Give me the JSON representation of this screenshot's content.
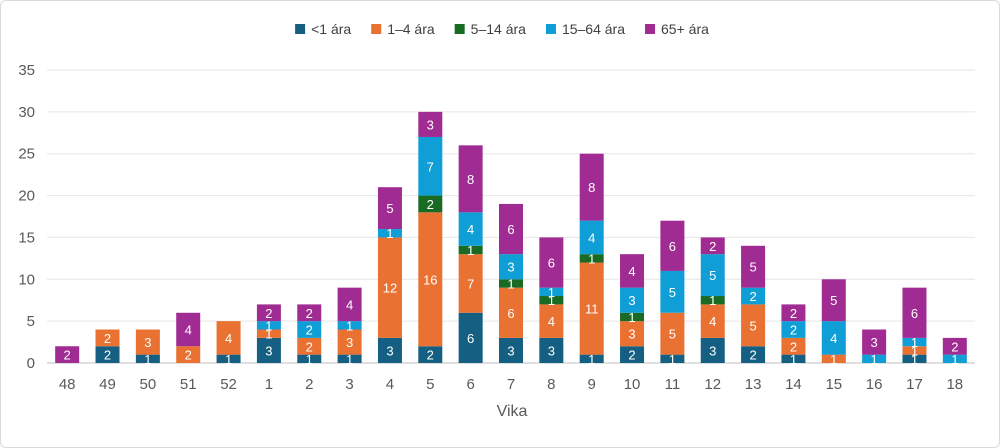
{
  "chart_data": {
    "type": "bar",
    "stacked": true,
    "xlabel": "Vika",
    "ylabel": "",
    "ylim": [
      0,
      35
    ],
    "yticks": [
      0,
      5,
      10,
      15,
      20,
      25,
      30,
      35
    ],
    "grid": true,
    "legend_position": "top",
    "categories": [
      "48",
      "49",
      "50",
      "51",
      "52",
      "1",
      "2",
      "3",
      "4",
      "5",
      "6",
      "7",
      "8",
      "9",
      "10",
      "11",
      "12",
      "13",
      "14",
      "15",
      "16",
      "17",
      "18"
    ],
    "series": [
      {
        "name": "<1 ára",
        "color": "#155f82",
        "values": [
          0,
          2,
          1,
          0,
          1,
          3,
          1,
          1,
          3,
          2,
          6,
          3,
          3,
          1,
          2,
          1,
          3,
          2,
          1,
          0,
          0,
          1,
          0
        ]
      },
      {
        "name": "1–4 ára",
        "color": "#e97132",
        "values": [
          0,
          2,
          3,
          2,
          4,
          1,
          2,
          3,
          12,
          16,
          7,
          6,
          4,
          11,
          3,
          5,
          4,
          5,
          2,
          1,
          0,
          1,
          0
        ]
      },
      {
        "name": "5–14 ára",
        "color": "#196b24",
        "values": [
          0,
          0,
          0,
          0,
          0,
          0,
          0,
          0,
          0,
          2,
          1,
          1,
          1,
          1,
          1,
          0,
          1,
          0,
          0,
          0,
          0,
          0,
          0
        ]
      },
      {
        "name": "15–64 ára",
        "color": "#0f9ed5",
        "values": [
          0,
          0,
          0,
          0,
          0,
          1,
          2,
          1,
          1,
          7,
          4,
          3,
          1,
          4,
          3,
          5,
          5,
          2,
          2,
          4,
          1,
          1,
          1
        ]
      },
      {
        "name": "65+ ára",
        "color": "#a02b93",
        "values": [
          2,
          0,
          0,
          4,
          0,
          2,
          2,
          4,
          5,
          3,
          8,
          6,
          6,
          8,
          4,
          6,
          2,
          5,
          2,
          5,
          3,
          6,
          2
        ]
      }
    ]
  }
}
